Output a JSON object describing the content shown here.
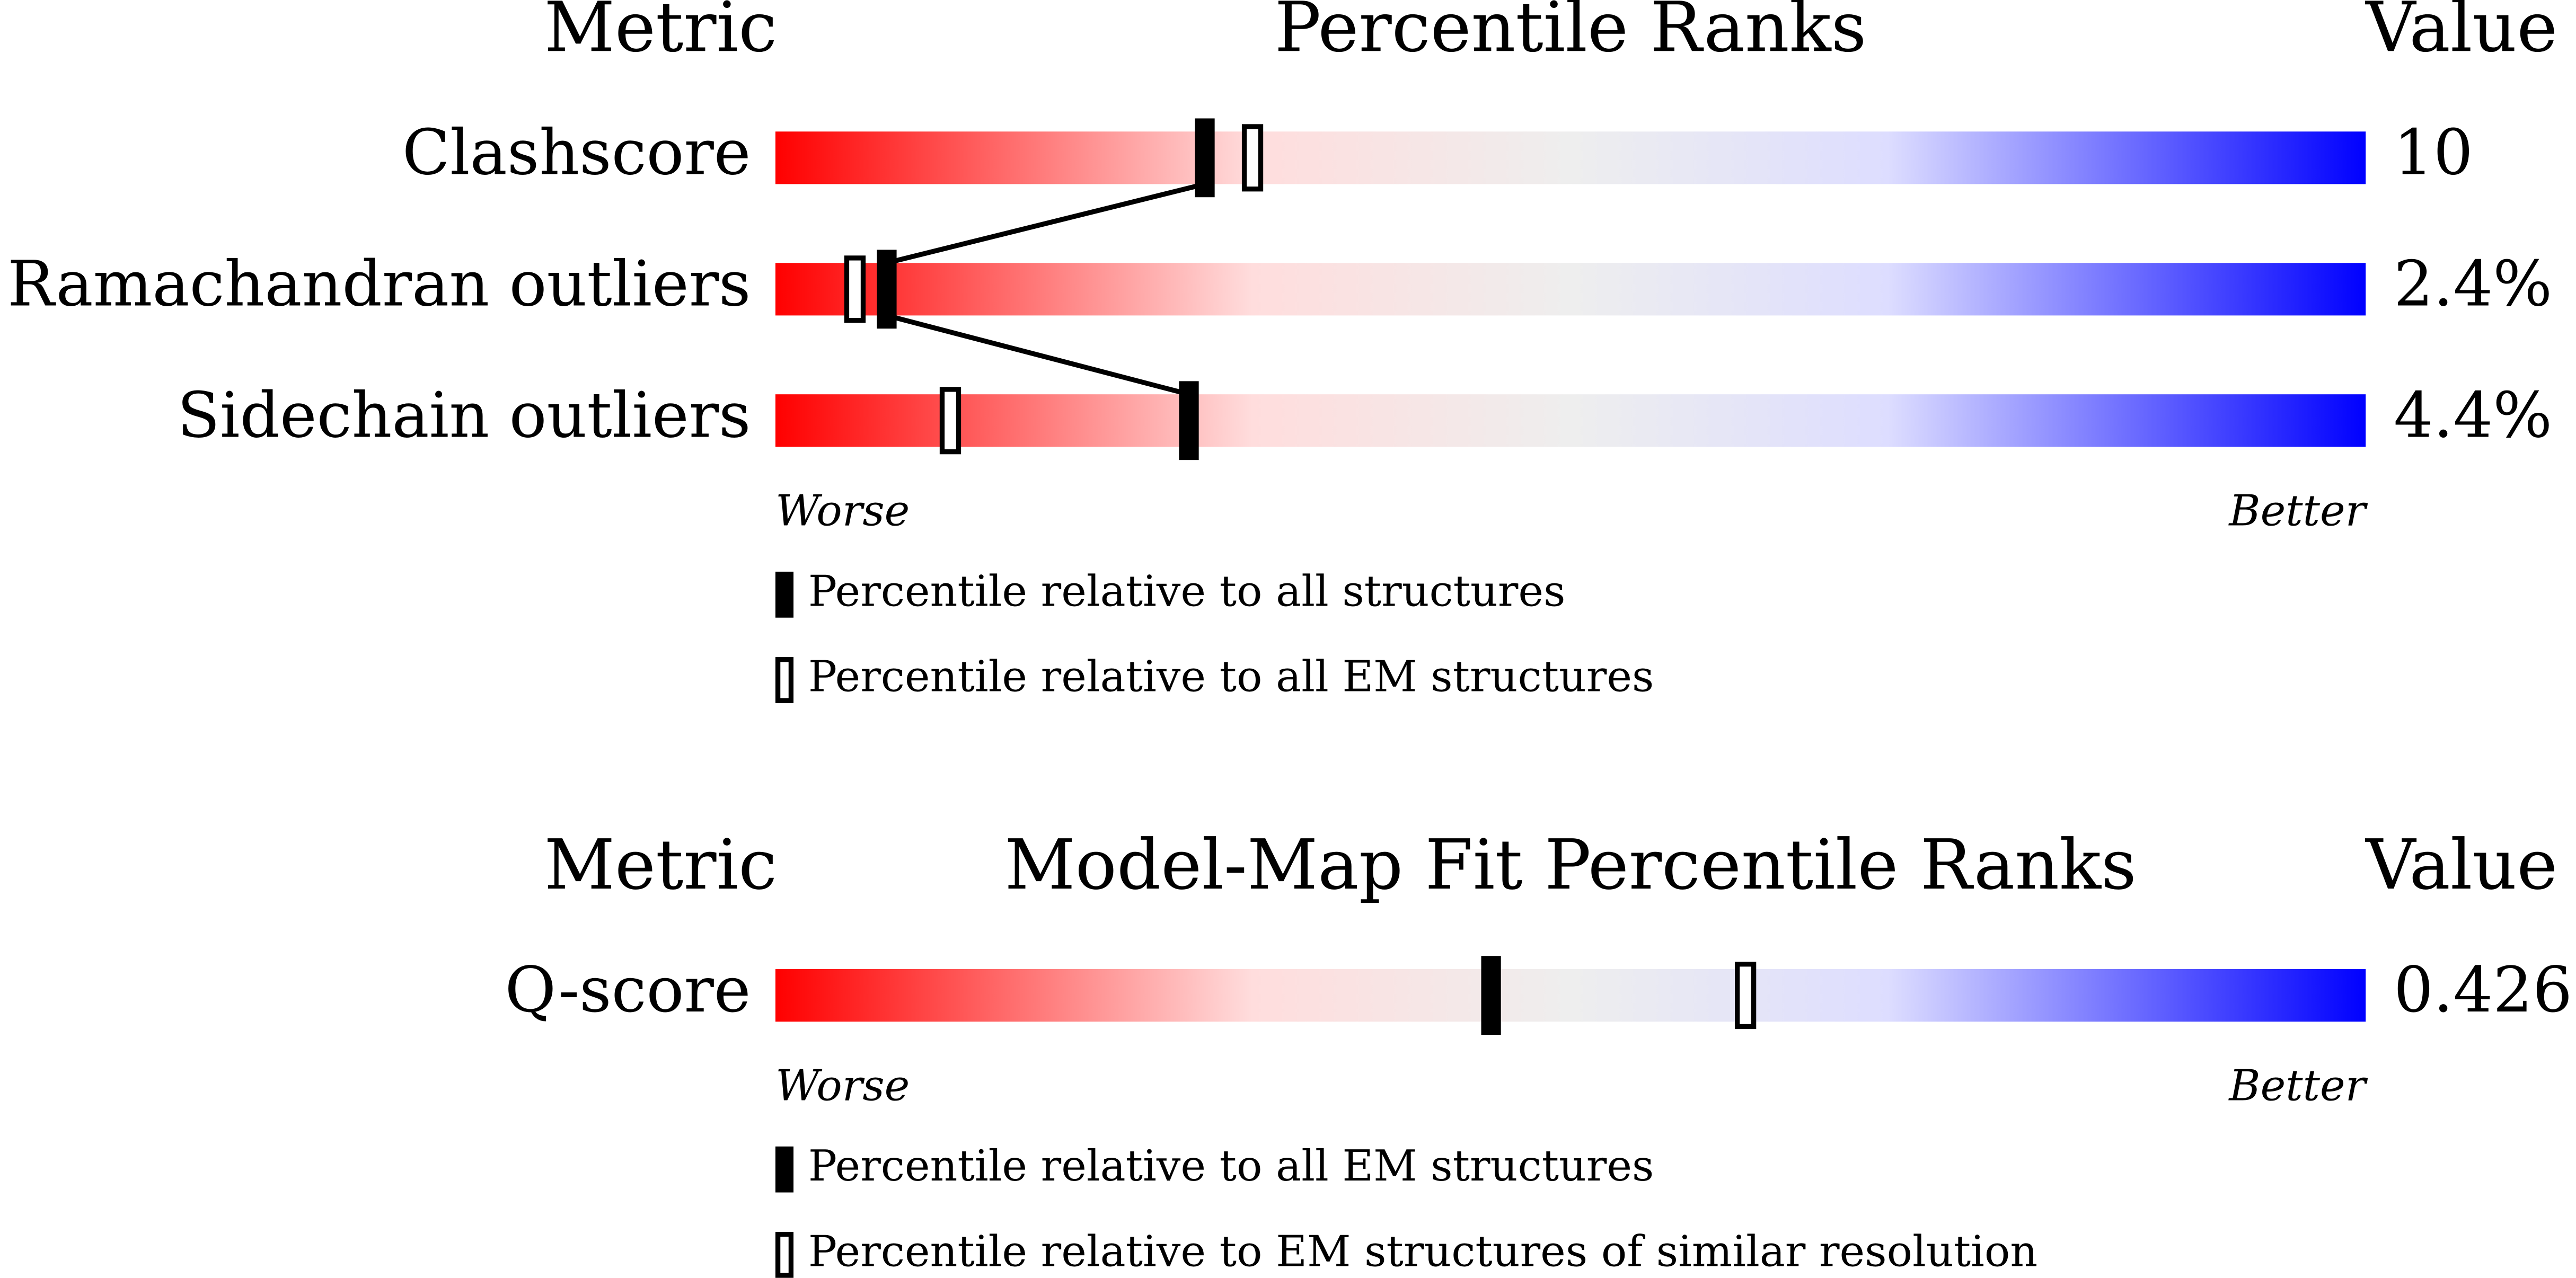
{
  "chart_data": [
    {
      "type": "percentile-slider",
      "metric_header": "Metric",
      "title": "Percentile Ranks",
      "value_header": "Value",
      "xlim": [
        0,
        100
      ],
      "connect": true,
      "rows": [
        {
          "metric": "Clashscore",
          "value": "10",
          "percentile_all": 27,
          "percentile_em": 30
        },
        {
          "metric": "Ramachandran outliers",
          "value": "2.4%",
          "percentile_all": 7,
          "percentile_em": 5
        },
        {
          "metric": "Sidechain outliers",
          "value": "4.4%",
          "percentile_all": 26,
          "percentile_em": 11
        }
      ],
      "worse": "Worse",
      "better": "Better",
      "legend": [
        "Percentile relative to all structures",
        "Percentile relative to all EM structures"
      ]
    },
    {
      "type": "percentile-slider",
      "metric_header": "Metric",
      "title": "Model-Map Fit Percentile Ranks",
      "value_header": "Value",
      "xlim": [
        0,
        100
      ],
      "connect": false,
      "rows": [
        {
          "metric": "Q-score",
          "value": "0.426",
          "percentile_all": 45,
          "percentile_em": 61
        }
      ],
      "worse": "Worse",
      "better": "Better",
      "legend": [
        "Percentile relative to all EM structures",
        "Percentile relative to EM structures of similar resolution"
      ]
    }
  ]
}
